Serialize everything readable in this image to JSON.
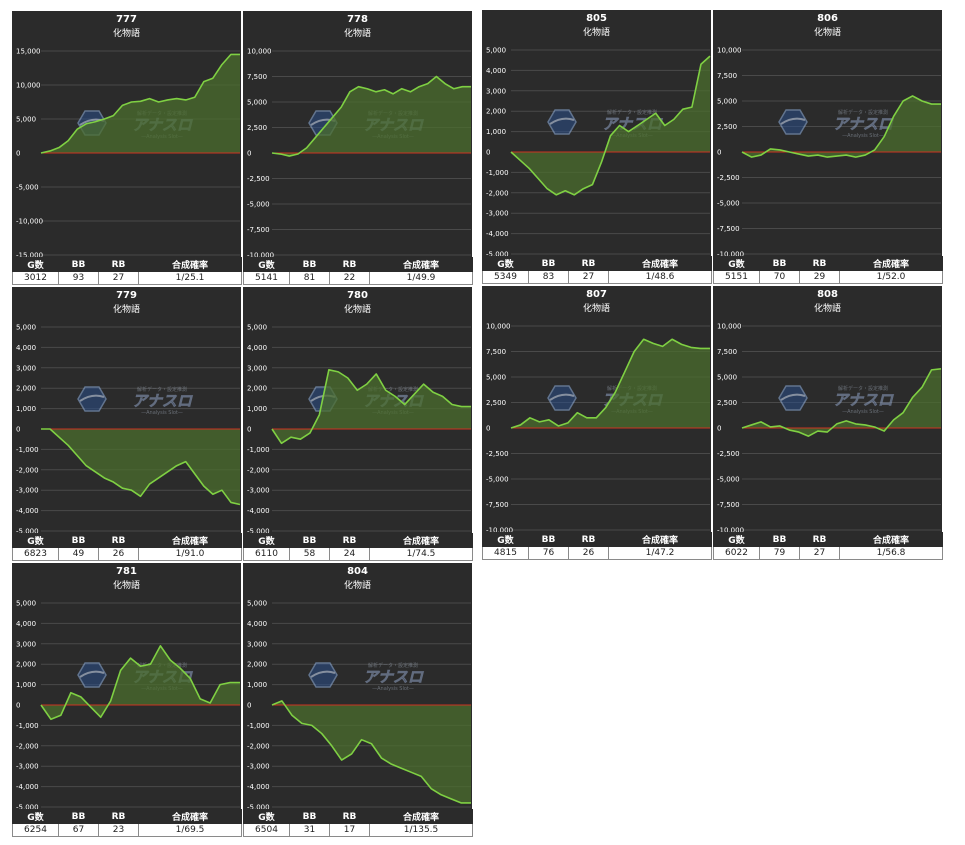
{
  "colors": {
    "panel_bg": "#2b2b2b",
    "grid": "#4a4a4a",
    "zero_line": "#cc3322",
    "line": "#7fd043",
    "fill": "#4b6e2e"
  },
  "watermark": {
    "top_text": "解析データ・設定推測",
    "main_text": "アナスロ",
    "sub_text": "—Analysis Slot—"
  },
  "table_headers": {
    "games": "G数",
    "bb": "BB",
    "rb": "RB",
    "rate": "合成確率"
  },
  "chart_data": [
    {
      "type": "line",
      "title": "777",
      "subtitle": "化物語",
      "ylim": [
        -15000,
        15000
      ],
      "yticks": [
        15000,
        10000,
        5000,
        0,
        -5000,
        -10000,
        -15000
      ],
      "ytick_labels": [
        "15,000",
        "10,000",
        "5,000",
        "0",
        "-5,000",
        "-10,000",
        "-15,000"
      ],
      "values": [
        0,
        300,
        800,
        1800,
        3500,
        4300,
        4600,
        5000,
        5500,
        7000,
        7500,
        7600,
        8000,
        7500,
        7800,
        8000,
        7800,
        8200,
        10500,
        11000,
        13000,
        14500,
        14500
      ],
      "stats": {
        "games": "3012",
        "bb": "93",
        "rb": "27",
        "rate": "1/25.1"
      }
    },
    {
      "type": "line",
      "title": "778",
      "subtitle": "化物語",
      "ylim": [
        -10000,
        10000
      ],
      "yticks": [
        10000,
        7500,
        5000,
        2500,
        0,
        -2500,
        -5000,
        -7500,
        -10000
      ],
      "ytick_labels": [
        "10,000",
        "7,500",
        "5,000",
        "2,500",
        "0",
        "-2,500",
        "-5,000",
        "-7,500",
        "-10,000"
      ],
      "values": [
        0,
        -100,
        -300,
        -100,
        500,
        1500,
        2500,
        3500,
        4500,
        6000,
        6500,
        6300,
        6000,
        6200,
        5800,
        6300,
        6000,
        6500,
        6800,
        7500,
        6800,
        6300,
        6500,
        6500
      ],
      "stats": {
        "games": "5141",
        "bb": "81",
        "rb": "22",
        "rate": "1/49.9"
      }
    },
    {
      "type": "line",
      "title": "805",
      "subtitle": "化物語",
      "ylim": [
        -5000,
        5000
      ],
      "yticks": [
        5000,
        4000,
        3000,
        2000,
        1000,
        0,
        -1000,
        -2000,
        -3000,
        -4000,
        -5000
      ],
      "ytick_labels": [
        "5,000",
        "4,000",
        "3,000",
        "2,000",
        "1,000",
        "0",
        "-1,000",
        "-2,000",
        "-3,000",
        "-4,000",
        "-5,000"
      ],
      "values": [
        0,
        -400,
        -800,
        -1300,
        -1800,
        -2100,
        -1900,
        -2100,
        -1800,
        -1600,
        -500,
        800,
        1300,
        1000,
        1300,
        1600,
        1900,
        1300,
        1600,
        2100,
        2200,
        4300,
        4700
      ],
      "stats": {
        "games": "5349",
        "bb": "83",
        "rb": "27",
        "rate": "1/48.6"
      }
    },
    {
      "type": "line",
      "title": "806",
      "subtitle": "化物語",
      "ylim": [
        -10000,
        10000
      ],
      "yticks": [
        10000,
        7500,
        5000,
        2500,
        0,
        -2500,
        -5000,
        -7500,
        -10000
      ],
      "ytick_labels": [
        "10,000",
        "7,500",
        "5,000",
        "2,500",
        "0",
        "-2,500",
        "-5,000",
        "-7,500",
        "-10,000"
      ],
      "values": [
        0,
        -500,
        -300,
        300,
        200,
        0,
        -200,
        -400,
        -300,
        -500,
        -400,
        -300,
        -500,
        -300,
        200,
        1500,
        3500,
        5000,
        5500,
        5000,
        4700,
        4700
      ],
      "stats": {
        "games": "5151",
        "bb": "70",
        "rb": "29",
        "rate": "1/52.0"
      }
    },
    {
      "type": "line",
      "title": "779",
      "subtitle": "化物語",
      "ylim": [
        -5000,
        5000
      ],
      "yticks": [
        5000,
        4000,
        3000,
        2000,
        1000,
        0,
        -1000,
        -2000,
        -3000,
        -4000,
        -5000
      ],
      "ytick_labels": [
        "5,000",
        "4,000",
        "3,000",
        "2,000",
        "1,000",
        "0",
        "-1,000",
        "-2,000",
        "-3,000",
        "-4,000",
        "-5,000"
      ],
      "values": [
        0,
        0,
        -400,
        -800,
        -1300,
        -1800,
        -2100,
        -2400,
        -2600,
        -2900,
        -3000,
        -3300,
        -2700,
        -2400,
        -2100,
        -1800,
        -1600,
        -2200,
        -2800,
        -3200,
        -3000,
        -3600,
        -3700
      ],
      "stats": {
        "games": "6823",
        "bb": "49",
        "rb": "26",
        "rate": "1/91.0"
      }
    },
    {
      "type": "line",
      "title": "780",
      "subtitle": "化物語",
      "ylim": [
        -5000,
        5000
      ],
      "yticks": [
        5000,
        4000,
        3000,
        2000,
        1000,
        0,
        -1000,
        -2000,
        -3000,
        -4000,
        -5000
      ],
      "ytick_labels": [
        "5,000",
        "4,000",
        "3,000",
        "2,000",
        "1,000",
        "0",
        "-1,000",
        "-2,000",
        "-3,000",
        "-4,000",
        "-5,000"
      ],
      "values": [
        0,
        -700,
        -400,
        -500,
        -200,
        700,
        2900,
        2800,
        2500,
        1900,
        2200,
        2700,
        1900,
        1600,
        1200,
        1700,
        2200,
        1800,
        1600,
        1200,
        1100,
        1100
      ],
      "stats": {
        "games": "6110",
        "bb": "58",
        "rb": "24",
        "rate": "1/74.5"
      }
    },
    {
      "type": "line",
      "title": "807",
      "subtitle": "化物語",
      "ylim": [
        -10000,
        10000
      ],
      "yticks": [
        10000,
        7500,
        5000,
        2500,
        0,
        -2500,
        -5000,
        -7500,
        -10000
      ],
      "ytick_labels": [
        "10,000",
        "7,500",
        "5,000",
        "2,500",
        "0",
        "-2,500",
        "-5,000",
        "-7,500",
        "-10,000"
      ],
      "values": [
        0,
        300,
        1000,
        600,
        800,
        200,
        500,
        1500,
        1000,
        1000,
        2000,
        3500,
        5500,
        7500,
        8700,
        8300,
        8000,
        8700,
        8200,
        7900,
        7800,
        7800
      ],
      "stats": {
        "games": "4815",
        "bb": "76",
        "rb": "26",
        "rate": "1/47.2"
      }
    },
    {
      "type": "line",
      "title": "808",
      "subtitle": "化物語",
      "ylim": [
        -10000,
        10000
      ],
      "yticks": [
        10000,
        7500,
        5000,
        2500,
        0,
        -2500,
        -5000,
        -7500,
        -10000
      ],
      "ytick_labels": [
        "10,000",
        "7,500",
        "5,000",
        "2,500",
        "0",
        "-2,500",
        "-5,000",
        "-7,500",
        "-10,000"
      ],
      "values": [
        0,
        300,
        600,
        100,
        200,
        -200,
        -400,
        -800,
        -300,
        -400,
        400,
        700,
        400,
        300,
        100,
        -300,
        800,
        1500,
        3000,
        4000,
        5700,
        5800
      ],
      "stats": {
        "games": "6022",
        "bb": "79",
        "rb": "27",
        "rate": "1/56.8"
      }
    },
    {
      "type": "line",
      "title": "781",
      "subtitle": "化物語",
      "ylim": [
        -5000,
        5000
      ],
      "yticks": [
        5000,
        4000,
        3000,
        2000,
        1000,
        0,
        -1000,
        -2000,
        -3000,
        -4000,
        -5000
      ],
      "ytick_labels": [
        "5,000",
        "4,000",
        "3,000",
        "2,000",
        "1,000",
        "0",
        "-1,000",
        "-2,000",
        "-3,000",
        "-4,000",
        "-5,000"
      ],
      "values": [
        0,
        -700,
        -500,
        600,
        400,
        -100,
        -600,
        200,
        1700,
        2300,
        1900,
        2000,
        2900,
        2200,
        1800,
        1300,
        300,
        100,
        1000,
        1100,
        1100
      ],
      "stats": {
        "games": "6254",
        "bb": "67",
        "rb": "23",
        "rate": "1/69.5"
      }
    },
    {
      "type": "line",
      "title": "804",
      "subtitle": "化物語",
      "ylim": [
        -5000,
        5000
      ],
      "yticks": [
        5000,
        4000,
        3000,
        2000,
        1000,
        0,
        -1000,
        -2000,
        -3000,
        -4000,
        -5000
      ],
      "ytick_labels": [
        "5,000",
        "4,000",
        "3,000",
        "2,000",
        "1,000",
        "0",
        "-1,000",
        "-2,000",
        "-3,000",
        "-4,000",
        "-5,000"
      ],
      "values": [
        0,
        200,
        -500,
        -900,
        -1000,
        -1400,
        -2000,
        -2700,
        -2400,
        -1700,
        -1900,
        -2600,
        -2900,
        -3100,
        -3300,
        -3500,
        -4100,
        -4400,
        -4600,
        -4800,
        -4800
      ],
      "stats": {
        "games": "6504",
        "bb": "31",
        "rb": "17",
        "rate": "1/135.5"
      }
    }
  ]
}
